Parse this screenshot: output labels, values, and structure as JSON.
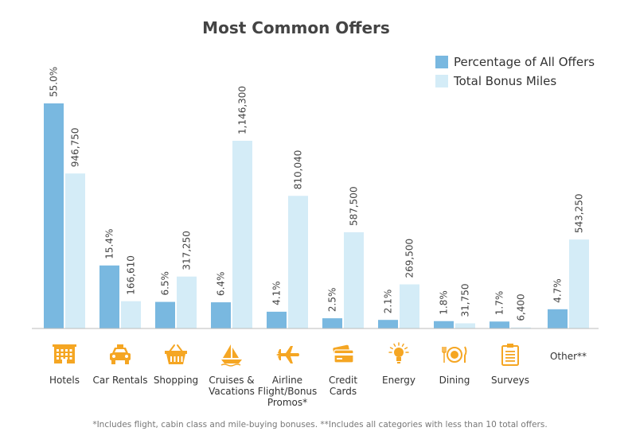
{
  "chart_data": {
    "type": "bar",
    "title": "Most Common Offers",
    "categories": [
      "Hotels",
      "Car Rentals",
      "Shopping",
      "Cruises & Vacations",
      "Airline Flight/Bonus Promos*",
      "Credit Cards",
      "Energy",
      "Dining",
      "Surveys",
      "Other**"
    ],
    "series": [
      {
        "name": "Percentage of All Offers",
        "color": "#79b8e0",
        "values": [
          55.0,
          15.4,
          6.5,
          6.4,
          4.1,
          2.5,
          2.1,
          1.8,
          1.7,
          4.7
        ],
        "labels": [
          "55.0%",
          "15.4%",
          "6.5%",
          "6.4%",
          "4.1%",
          "2.5%",
          "2.1%",
          "1.8%",
          "1.7%",
          "4.7%"
        ]
      },
      {
        "name": "Total Bonus Miles",
        "color": "#d4ecf7",
        "values": [
          946750,
          166610,
          317250,
          1146300,
          810040,
          587500,
          269500,
          31750,
          6400,
          543250
        ],
        "labels": [
          "946,750",
          "166,610",
          "317,250",
          "1,146,300",
          "810,040",
          "587,500",
          "269,500",
          "31,750",
          "6,400",
          "543,250"
        ]
      }
    ],
    "icons": [
      "hotel-icon",
      "taxi-icon",
      "shopping-basket-icon",
      "sailboat-icon",
      "airplane-icon",
      "credit-card-icon",
      "lightbulb-icon",
      "dining-icon",
      "clipboard-icon",
      null
    ],
    "icon_color": "#f5a623",
    "legend": "top-right",
    "grid": false,
    "footnote": "*Includes flight, cabin class and mile-buying bonuses. **Includes all categories with less than 10 total offers."
  }
}
